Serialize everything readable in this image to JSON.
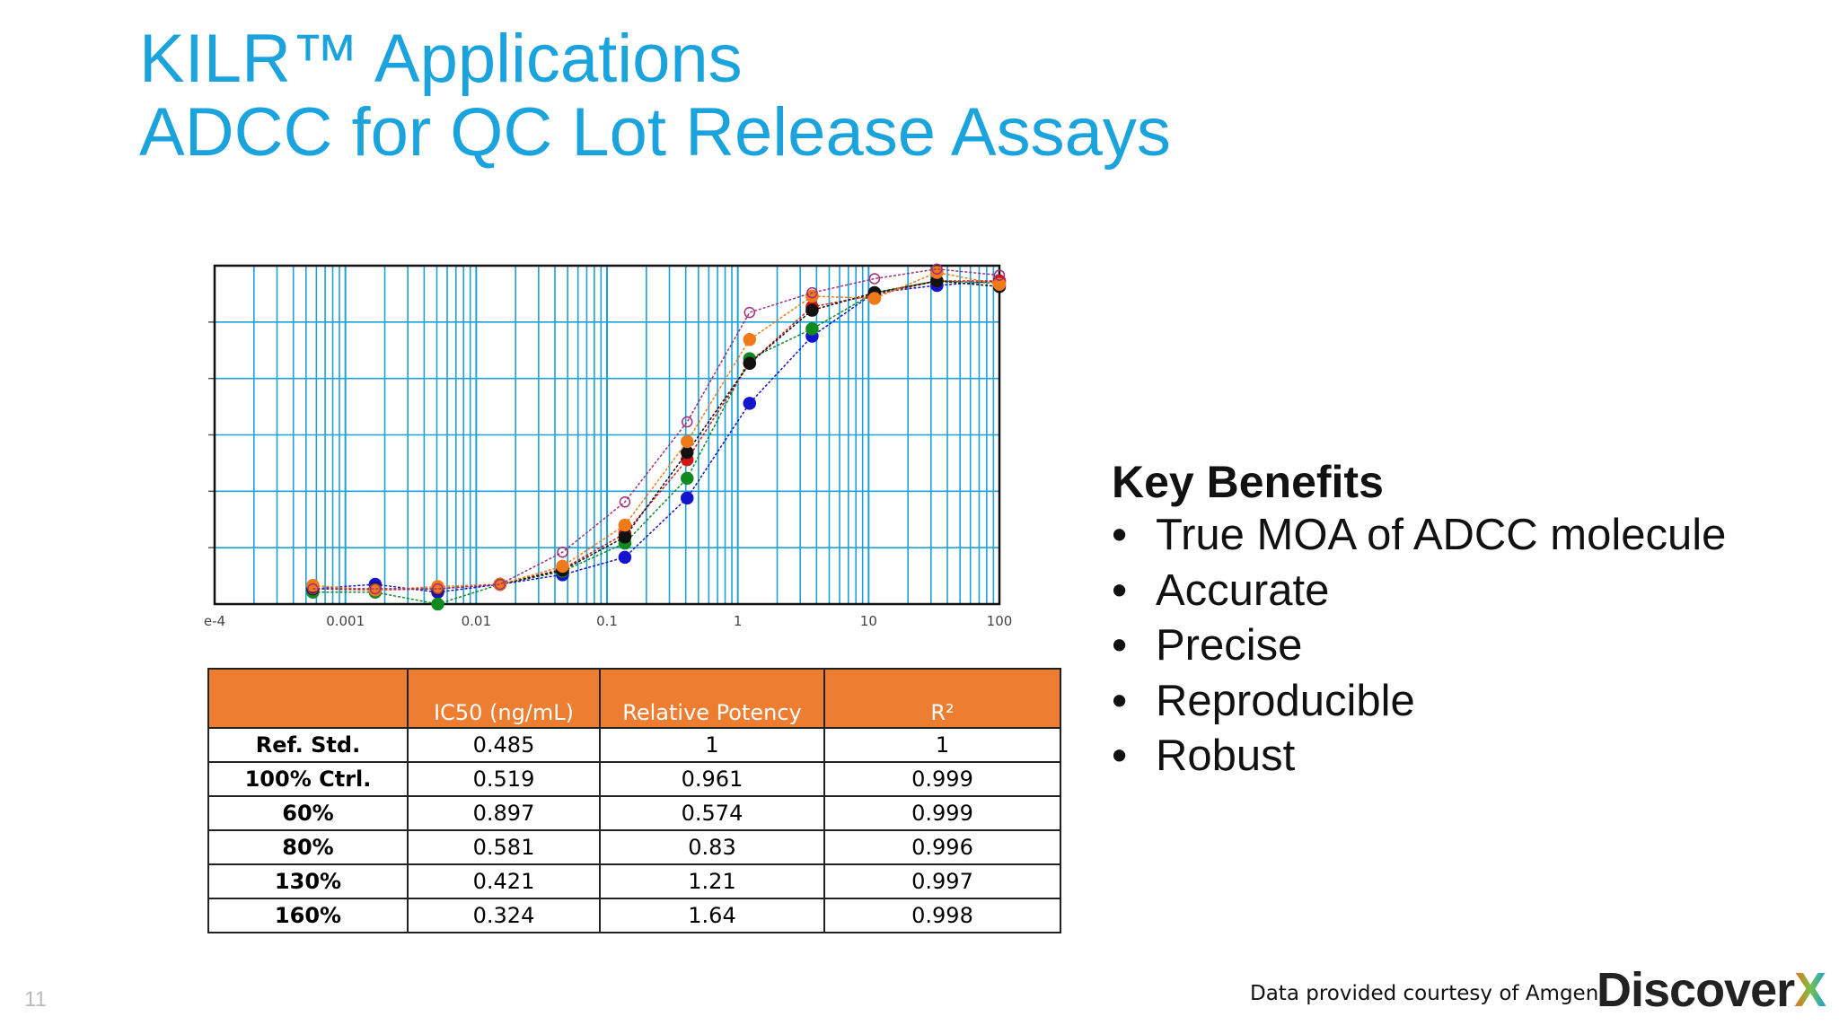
{
  "header": {
    "title_line1": "KILR™ Applications",
    "title_line2": "ADCC for QC Lot Release Assays"
  },
  "chart_data": {
    "type": "line",
    "log_x": true,
    "grid": true,
    "x": [
      0.000564,
      0.00169,
      0.00508,
      0.0152,
      0.0457,
      0.137,
      0.41,
      1.23,
      3.7,
      11.1,
      33.3,
      100
    ],
    "xlim": [
      0.0001,
      100
    ],
    "xticks": [
      {
        "value": 0.0001,
        "label": "e-4"
      },
      0.001,
      0.01,
      0.1,
      1,
      10,
      100
    ],
    "ylim": [
      0,
      6
    ],
    "ygrid": [
      1,
      2,
      3,
      4,
      5
    ],
    "series": [
      {
        "color": "#1414cc",
        "marker": "filled",
        "values": [
          0.27,
          0.35,
          0.21,
          0.35,
          0.52,
          0.83,
          1.88,
          3.56,
          4.75,
          5.52,
          5.65,
          5.73
        ]
      },
      {
        "color": "#0f8a1f",
        "marker": "filled",
        "values": [
          0.21,
          0.21,
          0.0,
          0.35,
          0.58,
          1.08,
          2.23,
          4.35,
          4.88,
          5.52,
          5.73,
          5.69
        ]
      },
      {
        "color": "#d01818",
        "marker": "filled",
        "values": [
          0.27,
          0.25,
          0.27,
          0.35,
          0.62,
          1.25,
          2.56,
          4.27,
          5.27,
          5.48,
          5.73,
          5.73
        ]
      },
      {
        "color": "#111111",
        "marker": "filled",
        "values": [
          0.27,
          0.27,
          0.27,
          0.35,
          0.6,
          1.19,
          2.69,
          4.27,
          5.21,
          5.52,
          5.73,
          5.63
        ]
      },
      {
        "color": "#f07a1a",
        "marker": "filled",
        "values": [
          0.33,
          0.25,
          0.31,
          0.35,
          0.67,
          1.4,
          2.88,
          4.69,
          5.46,
          5.42,
          5.88,
          5.67
        ]
      },
      {
        "color": "#a0307a",
        "marker": "open",
        "values": [
          0.27,
          0.27,
          0.27,
          0.35,
          0.92,
          1.81,
          3.23,
          5.17,
          5.52,
          5.77,
          5.94,
          5.83
        ]
      }
    ]
  },
  "table": {
    "columns": [
      "IC50 (ng/mL)",
      "Relative Potency",
      "R²"
    ],
    "rows": [
      [
        "Ref. Std.",
        "0.485",
        "1",
        "1"
      ],
      [
        "100% Ctrl.",
        "0.519",
        "0.961",
        "0.999"
      ],
      [
        "60%",
        "0.897",
        "0.574",
        "0.999"
      ],
      [
        "80%",
        "0.581",
        "0.83",
        "0.996"
      ],
      [
        "130%",
        "0.421",
        "1.21",
        "0.997"
      ],
      [
        "160%",
        "0.324",
        "1.64",
        "0.998"
      ]
    ]
  },
  "benefits": {
    "title": "Key Benefits",
    "items": [
      "True MOA of ADCC molecule",
      "Accurate",
      "Precise",
      "Reproducible",
      "Robust"
    ]
  },
  "footer": {
    "note": "Data provided courtesy of Amgen",
    "logo": [
      "Discover",
      "X"
    ],
    "page": "11"
  }
}
